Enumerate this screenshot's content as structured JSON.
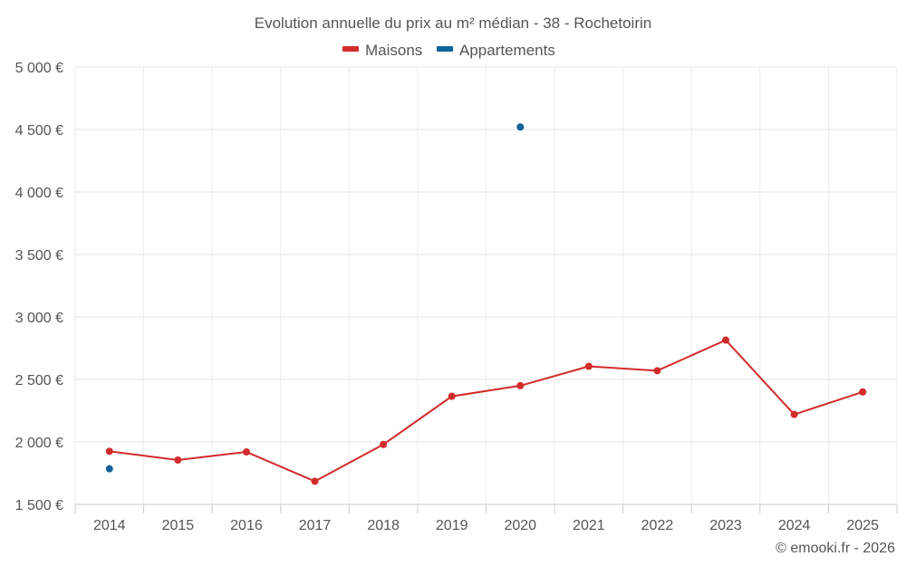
{
  "chart_data": {
    "type": "line",
    "title": "Evolution annuelle du prix au m² médian - 38 - Rochetoirin",
    "categories": [
      "2014",
      "2015",
      "2016",
      "2017",
      "2018",
      "2019",
      "2020",
      "2021",
      "2022",
      "2023",
      "2024",
      "2025"
    ],
    "series": [
      {
        "name": "Maisons",
        "color": "#d22b2b",
        "values": [
          1925,
          1855,
          1920,
          1685,
          1980,
          2365,
          2450,
          2605,
          2570,
          2815,
          2220,
          2400
        ]
      },
      {
        "name": "Appartements",
        "color": "#0f6399",
        "values": [
          1785,
          null,
          null,
          null,
          null,
          null,
          4520,
          null,
          null,
          null,
          null,
          null
        ]
      }
    ],
    "ylim": [
      1500,
      5000
    ],
    "yticks": [
      1500,
      2000,
      2500,
      3000,
      3500,
      4000,
      4500,
      5000
    ],
    "ytick_labels": [
      "1 500 €",
      "2 000 €",
      "2 500 €",
      "3 000 €",
      "3 500 €",
      "4 000 €",
      "4 500 €",
      "5 000 €"
    ],
    "grid": true,
    "legend_position": "top-center",
    "xlabel": "",
    "ylabel": ""
  },
  "credit": "© emooki.fr - 2026"
}
